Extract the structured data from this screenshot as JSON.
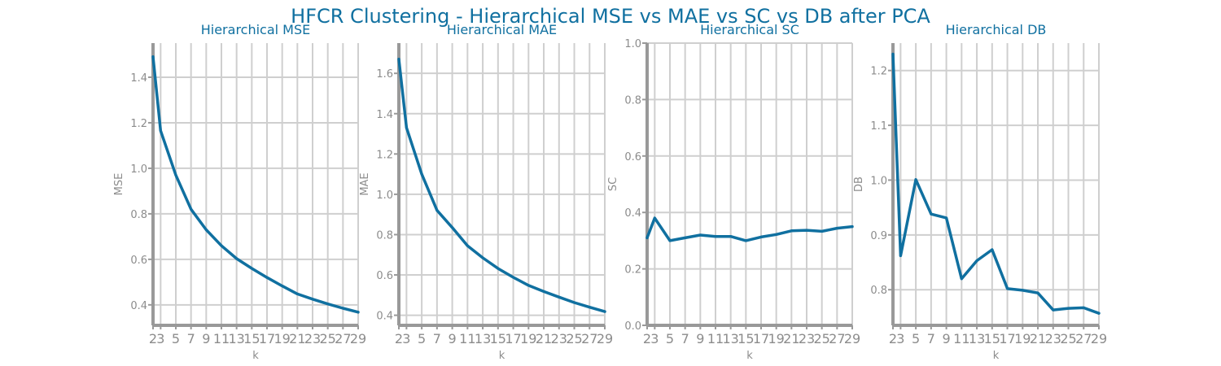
{
  "figure_title": "HFCR Clustering - Hierarchical MSE vs MAE vs SC vs DB after PCA",
  "colors": {
    "line": "#1070a0",
    "title": "#1070a0",
    "grid": "#cfcfcf",
    "spine": "#999999",
    "tick_text": "#8c8c8c"
  },
  "chart_data": [
    {
      "type": "line",
      "title": "Hierarchical MSE",
      "xlabel": "k",
      "ylabel": "MSE",
      "x": [
        2,
        3,
        5,
        7,
        9,
        11,
        13,
        15,
        17,
        19,
        21,
        23,
        25,
        27,
        29
      ],
      "x_ticks": [
        2,
        3,
        5,
        7,
        9,
        11,
        13,
        15,
        17,
        19,
        21,
        23,
        25,
        27,
        29
      ],
      "y_ticks": [
        0.4,
        0.6,
        0.8,
        1.0,
        1.2,
        1.4
      ],
      "ylim": [
        0.31,
        1.55
      ],
      "grid": true,
      "series": [
        {
          "values": [
            1.49,
            1.165,
            0.97,
            0.82,
            0.73,
            0.66,
            0.603,
            0.56,
            0.52,
            0.483,
            0.448,
            0.425,
            0.404,
            0.385,
            0.368
          ]
        }
      ]
    },
    {
      "type": "line",
      "title": "Hierarchical MAE",
      "xlabel": "k",
      "ylabel": "MAE",
      "x": [
        2,
        3,
        5,
        7,
        9,
        11,
        13,
        15,
        17,
        19,
        21,
        23,
        25,
        27,
        29
      ],
      "x_ticks": [
        2,
        3,
        5,
        7,
        9,
        11,
        13,
        15,
        17,
        19,
        21,
        23,
        25,
        27,
        29
      ],
      "y_ticks": [
        0.4,
        0.6,
        0.8,
        1.0,
        1.2,
        1.4,
        1.6
      ],
      "ylim": [
        0.35,
        1.75
      ],
      "grid": true,
      "series": [
        {
          "values": [
            1.67,
            1.33,
            1.1,
            0.92,
            0.835,
            0.745,
            0.685,
            0.632,
            0.588,
            0.548,
            0.518,
            0.49,
            0.463,
            0.44,
            0.418
          ]
        }
      ]
    },
    {
      "type": "line",
      "title": "Hierarchical SC",
      "xlabel": "k",
      "ylabel": "SC",
      "x": [
        2,
        3,
        5,
        7,
        9,
        11,
        13,
        15,
        17,
        19,
        21,
        23,
        25,
        27,
        29
      ],
      "x_ticks": [
        2,
        3,
        5,
        7,
        9,
        11,
        13,
        15,
        17,
        19,
        21,
        23,
        25,
        27,
        29
      ],
      "y_ticks": [
        0.0,
        0.2,
        0.4,
        0.6,
        0.8,
        1.0
      ],
      "ylim": [
        0.0,
        1.0
      ],
      "grid": true,
      "series": [
        {
          "values": [
            0.31,
            0.38,
            0.3,
            0.31,
            0.32,
            0.315,
            0.315,
            0.3,
            0.313,
            0.322,
            0.335,
            0.337,
            0.333,
            0.344,
            0.35
          ]
        }
      ]
    },
    {
      "type": "line",
      "title": "Hierarchical DB",
      "xlabel": "k",
      "ylabel": "DB",
      "x": [
        2,
        3,
        5,
        7,
        9,
        11,
        13,
        15,
        17,
        19,
        21,
        23,
        25,
        27,
        29
      ],
      "x_ticks": [
        2,
        3,
        5,
        7,
        9,
        11,
        13,
        15,
        17,
        19,
        21,
        23,
        25,
        27,
        29
      ],
      "y_ticks": [
        0.8,
        0.9,
        1.0,
        1.1,
        1.2
      ],
      "ylim": [
        0.735,
        1.25
      ],
      "grid": true,
      "series": [
        {
          "values": [
            1.23,
            0.862,
            1.001,
            0.938,
            0.931,
            0.82,
            0.853,
            0.873,
            0.802,
            0.799,
            0.794,
            0.763,
            0.766,
            0.767,
            0.757
          ]
        }
      ]
    }
  ]
}
